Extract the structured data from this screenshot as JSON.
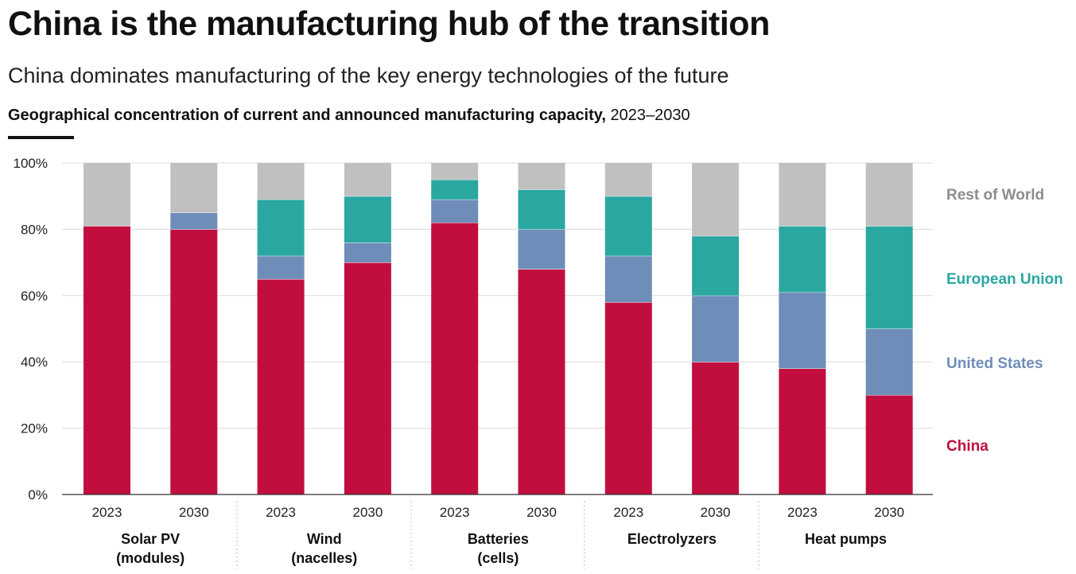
{
  "title": "China is the manufacturing hub of the transition",
  "subtitle": "China dominates manufacturing of the key energy technologies of the future",
  "chart_heading": {
    "bold": "Geographical concentration of current and announced manufacturing capacity,",
    "years": "2023–2030"
  },
  "chart_data": {
    "type": "bar",
    "stacked": true,
    "ylim": [
      0,
      100
    ],
    "y_ticks": [
      "0%",
      "20%",
      "40%",
      "60%",
      "80%",
      "100%"
    ],
    "y_tick_values": [
      0,
      20,
      40,
      60,
      80,
      100
    ],
    "grid": true,
    "legend_position": "right",
    "groups": [
      {
        "label": [
          "Solar PV",
          "(modules)"
        ],
        "bars": [
          "2023",
          "2030"
        ]
      },
      {
        "label": [
          "Wind",
          "(nacelles)"
        ],
        "bars": [
          "2023",
          "2030"
        ]
      },
      {
        "label": [
          "Batteries",
          "(cells)"
        ],
        "bars": [
          "2023",
          "2030"
        ]
      },
      {
        "label": [
          "Electrolyzers"
        ],
        "bars": [
          "2023",
          "2030"
        ]
      },
      {
        "label": [
          "Heat pumps"
        ],
        "bars": [
          "2023",
          "2030"
        ]
      }
    ],
    "categories": [
      "Solar PV 2023",
      "Solar PV 2030",
      "Wind 2023",
      "Wind 2030",
      "Batteries 2023",
      "Batteries 2030",
      "Electrolyzers 2023",
      "Electrolyzers 2030",
      "Heat pumps 2023",
      "Heat pumps 2030"
    ],
    "series": [
      {
        "name": "China",
        "color": "#c20e3e",
        "values": [
          81,
          80,
          65,
          70,
          82,
          68,
          58,
          40,
          38,
          30
        ]
      },
      {
        "name": "United States",
        "color": "#6e8db8",
        "values": [
          0,
          5,
          7,
          6,
          7,
          12,
          14,
          20,
          23,
          20
        ]
      },
      {
        "name": "European Union",
        "color": "#2aa7a1",
        "values": [
          0,
          0,
          17,
          14,
          6,
          12,
          18,
          18,
          20,
          31
        ]
      },
      {
        "name": "Rest of World",
        "color": "#c0c0c0",
        "values": [
          19,
          15,
          11,
          10,
          5,
          8,
          10,
          22,
          19,
          19
        ]
      }
    ],
    "legend": [
      {
        "name": "Rest of World",
        "color": "#8c8c8c"
      },
      {
        "name": "European Union",
        "color": "#2aa7a1"
      },
      {
        "name": "United States",
        "color": "#6e8db8"
      },
      {
        "name": "China",
        "color": "#c20e3e"
      }
    ]
  }
}
